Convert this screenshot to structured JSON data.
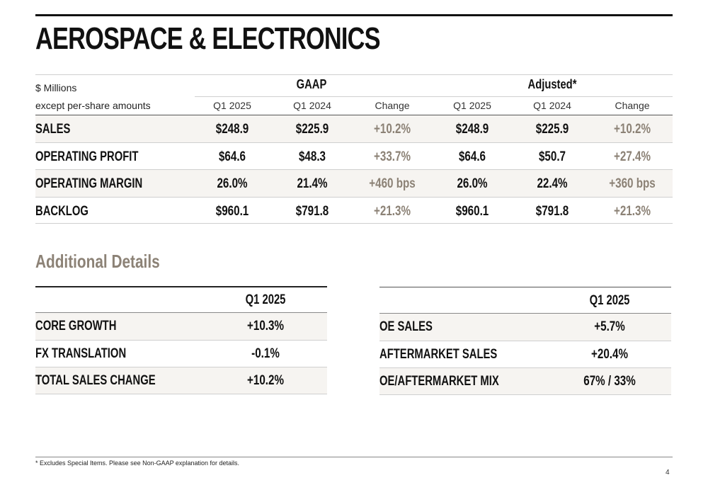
{
  "title": "AEROSPACE & ELECTRONICS",
  "main_table": {
    "unit_line1": "$ Millions",
    "unit_line2": "except per-share amounts",
    "group_gaap": "GAAP",
    "group_adjusted": "Adjusted*",
    "columns": [
      "Q1 2025",
      "Q1 2024",
      "Change",
      "Q1 2025",
      "Q1 2024",
      "Change"
    ],
    "rows": [
      {
        "label": "SALES",
        "values": [
          "$248.9",
          "$225.9",
          "+10.2%",
          "$248.9",
          "$225.9",
          "+10.2%"
        ]
      },
      {
        "label": "OPERATING PROFIT",
        "values": [
          "$64.6",
          "$48.3",
          "+33.7%",
          "$64.6",
          "$50.7",
          "+27.4%"
        ]
      },
      {
        "label": "OPERATING MARGIN",
        "values": [
          "26.0%",
          "21.4%",
          "+460 bps",
          "26.0%",
          "22.4%",
          "+360 bps"
        ]
      },
      {
        "label": "BACKLOG",
        "values": [
          "$960.1",
          "$791.8",
          "+21.3%",
          "$960.1",
          "$791.8",
          "+21.3%"
        ]
      }
    ]
  },
  "additional_title": "Additional Details",
  "left_table": {
    "header": "Q1 2025",
    "rows": [
      {
        "label": "CORE GROWTH",
        "value": "+10.3%"
      },
      {
        "label": "FX TRANSLATION",
        "value": "-0.1%"
      },
      {
        "label": "TOTAL SALES CHANGE",
        "value": "+10.2%"
      }
    ]
  },
  "right_table": {
    "header": "Q1 2025",
    "rows": [
      {
        "label": "OE SALES",
        "value": "+5.7%"
      },
      {
        "label": "AFTERMARKET SALES",
        "value": "+20.4%"
      },
      {
        "label": "OE/AFTERMARKET MIX",
        "value": "67% / 33%"
      }
    ]
  },
  "footnote": "* Excludes Special Items. Please see Non-GAAP explanation for details.",
  "page_number": "4",
  "colors": {
    "accent_change": "#8c8276",
    "row_shade": "#f6f4f1"
  }
}
